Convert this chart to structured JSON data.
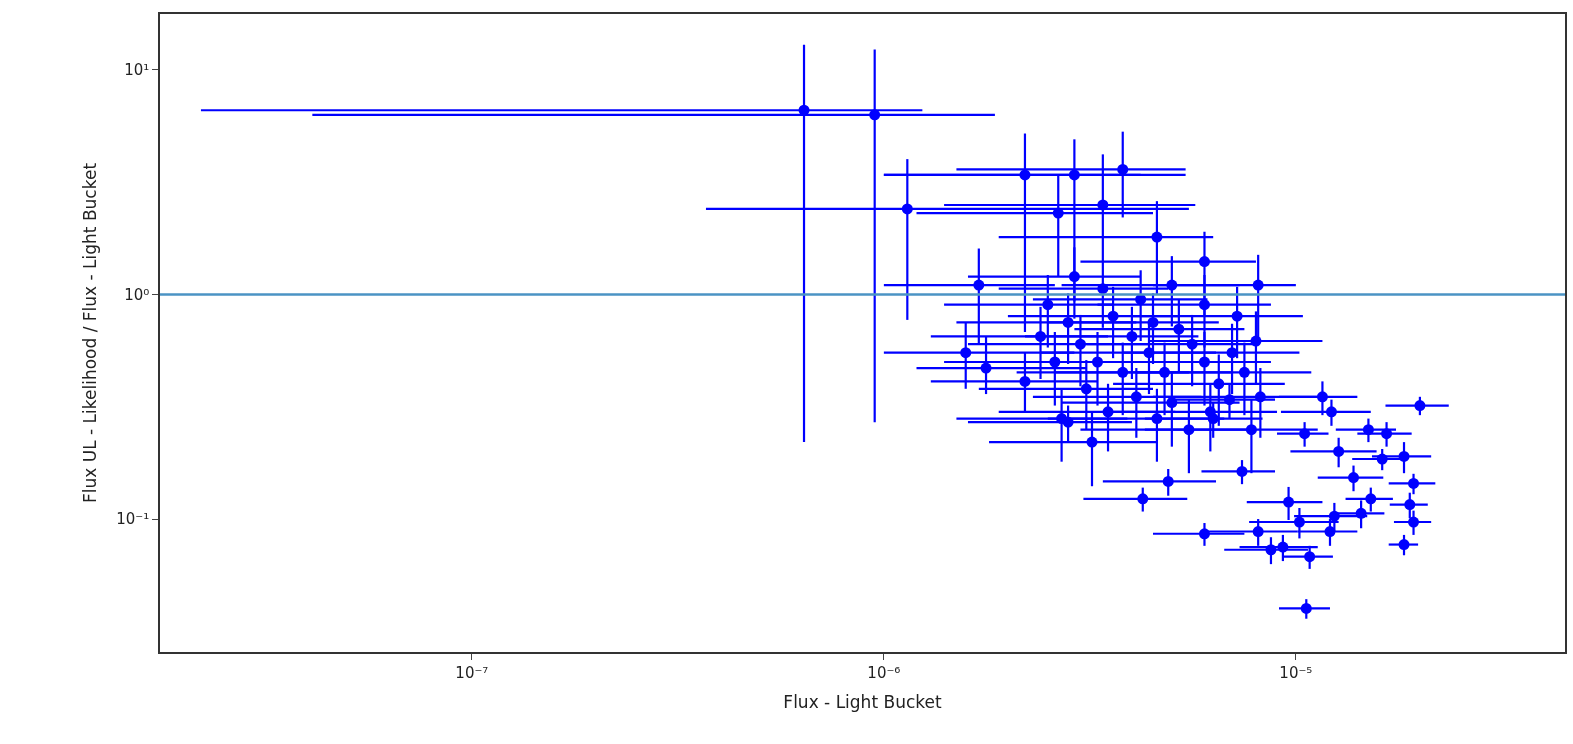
{
  "chart_data": {
    "type": "scatter",
    "xlabel": "Flux - Light Bucket",
    "ylabel": "Flux UL - Likelihood / Flux - Light Bucket",
    "log": "xy",
    "marker": "circle",
    "xlim": [
      1.75e-08,
      4.5e-05
    ],
    "ylim": [
      0.0256,
      17.7
    ],
    "xticks": [
      {
        "value": 1e-07,
        "label": "10⁻⁷"
      },
      {
        "value": 1e-06,
        "label": "10⁻⁶"
      },
      {
        "value": 1e-05,
        "label": "10⁻⁵"
      }
    ],
    "yticks": [
      {
        "value": 0.1,
        "label": "10⁻¹"
      },
      {
        "value": 1,
        "label": "10⁰"
      },
      {
        "value": 10,
        "label": "10¹"
      }
    ],
    "ref_lines": [
      {
        "axis": "y",
        "value": 1,
        "color": "#4b93c4"
      }
    ],
    "series": [
      {
        "color": "#0000ff",
        "x": [
          6.4e-07,
          9.5e-07,
          1.14e-06,
          2.2e-06,
          2.9e-06,
          3.8e-06,
          3.4e-06,
          2.65e-06,
          4.6e-06,
          6e-06,
          8.1e-06,
          1.7e-06,
          1.58e-06,
          1.77e-06,
          2.2e-06,
          1.16e-05,
          2e-05,
          1.22e-05,
          1.05e-05,
          1.5e-05,
          1.66e-05,
          1.27e-05,
          1.83e-05,
          1.38e-05,
          1.62e-05,
          1.93e-05,
          1.52e-05,
          1.44e-05,
          1.89e-05,
          1.93e-05,
          1.83e-05,
          6.9e-06,
          7.4e-06,
          4.9e-06,
          4.25e-06,
          9.6e-06,
          1.02e-05,
          1.24e-05,
          8.1e-06,
          6e-06,
          9.3e-06,
          1.08e-05,
          1.21e-05,
          1.06e-05,
          8.7e-06,
          2.8e-06,
          6.3e-06,
          2.5e-06,
          2.8e-06,
          3e-06,
          3.3e-06,
          3.6e-06,
          4e-06,
          4.4e-06,
          4.8e-06,
          5.2e-06,
          5.6e-06,
          6e-06,
          6.5e-06,
          7e-06,
          7.5e-06,
          8e-06,
          2.6e-06,
          3.1e-06,
          3.5e-06,
          4.1e-06,
          4.6e-06,
          5e-06,
          5.5e-06,
          6.2e-06,
          2.4e-06,
          2.9e-06,
          3.4e-06,
          4.2e-06,
          5e-06,
          6e-06,
          7.2e-06,
          3.8e-06,
          4.5e-06,
          2.7e-06,
          3.2e-06,
          8.2e-06,
          7.8e-06
        ],
        "values": [
          6.6,
          6.3,
          2.4,
          3.4,
          3.4,
          3.6,
          2.5,
          2.3,
          1.8,
          1.4,
          1.1,
          1.1,
          0.55,
          0.47,
          0.41,
          0.35,
          0.32,
          0.3,
          0.24,
          0.25,
          0.24,
          0.2,
          0.19,
          0.153,
          0.185,
          0.144,
          0.123,
          0.106,
          0.116,
          0.097,
          0.077,
          0.34,
          0.163,
          0.147,
          0.123,
          0.119,
          0.097,
          0.103,
          0.088,
          0.086,
          0.075,
          0.068,
          0.088,
          0.04,
          0.073,
          0.27,
          0.28,
          0.9,
          0.75,
          0.6,
          0.5,
          0.8,
          0.65,
          0.55,
          0.45,
          0.7,
          0.6,
          0.5,
          0.4,
          0.55,
          0.45,
          0.62,
          0.5,
          0.38,
          0.3,
          0.35,
          0.28,
          0.33,
          0.25,
          0.3,
          0.65,
          1.2,
          1.06,
          0.95,
          1.1,
          0.9,
          0.8,
          0.45,
          0.75,
          0.28,
          0.22,
          0.35,
          0.25
        ],
        "xerrors": [
          [
            2.2e-08,
            1.24e-06
          ],
          [
            4.1e-08,
            1.86e-06
          ],
          [
            3.7e-07,
            5.5e-06
          ],
          [
            1e-06,
            4.2e-06
          ],
          [
            1e-06,
            5.4e-06
          ],
          [
            1.5e-06,
            5.4e-06
          ],
          [
            1.4e-06,
            5.7e-06
          ],
          [
            1.2e-06,
            4.5e-06
          ],
          [
            1.9e-06,
            6.3e-06
          ],
          [
            3e-06,
            8e-06
          ],
          [
            4.5e-06,
            1e-05
          ],
          [
            1e-06,
            2.6e-06
          ],
          [
            1e-06,
            2.9e-06
          ],
          [
            1.2e-06,
            3.1e-06
          ],
          [
            1.3e-06,
            3.3e-06
          ],
          2.5e-06,
          3.5e-06,
          3e-06,
          1.5e-06,
          2.5e-06,
          2.5e-06,
          3e-06,
          3e-06,
          2.5e-06,
          2.5e-06,
          2.5e-06,
          2e-06,
          2e-06,
          2e-06,
          2e-06,
          1.5e-06,
          2e-06,
          1.5e-06,
          1.5e-06,
          1.2e-06,
          2e-06,
          2.5e-06,
          2.5e-06,
          2e-06,
          1.5e-06,
          2e-06,
          1.5e-06,
          2e-06,
          1.5e-06,
          2e-06,
          1.2e-06,
          2e-06,
          1.1e-06,
          1.3e-06,
          1.4e-06,
          1.5e-06,
          1.6e-06,
          1.8e-06,
          2e-06,
          2.2e-06,
          2.3e-06,
          2.5e-06,
          2.7e-06,
          2.9e-06,
          3.2e-06,
          3.4e-06,
          3.6e-06,
          1.2e-06,
          1.4e-06,
          1.6e-06,
          1.8e-06,
          2.1e-06,
          2.3e-06,
          2.5e-06,
          2.8e-06,
          1.1e-06,
          1.3e-06,
          1.5e-06,
          1.9e-06,
          2.3e-06,
          2.7e-06,
          3.2e-06,
          1.7e-06,
          2e-06,
          1.2e-06,
          1.4e-06,
          3.7e-06,
          3.5e-06
        ],
        "errors": [
          [
            0.22,
            12.9
          ],
          [
            0.27,
            12.3
          ],
          [
            0.77,
            4.0
          ],
          [
            0.68,
            5.2
          ],
          [
            0.93,
            4.9
          ],
          [
            2.2,
            5.3
          ],
          [
            1.4,
            4.2
          ],
          [
            1.2,
            3.4
          ],
          [
            1.0,
            2.6
          ],
          [
            0.8,
            1.9
          ],
          [
            0.6,
            1.5
          ],
          [
            0.6,
            1.6
          ],
          [
            0.38,
            0.75
          ],
          [
            0.36,
            0.65
          ],
          [
            0.3,
            0.55
          ],
          0.06,
          0.03,
          0.04,
          0.03,
          0.03,
          0.03,
          0.03,
          0.03,
          0.02,
          0.02,
          0.015,
          0.015,
          0.015,
          0.015,
          0.012,
          0.008,
          0.06,
          0.02,
          0.02,
          0.015,
          0.02,
          0.015,
          0.015,
          0.012,
          0.01,
          0.01,
          0.008,
          0.012,
          0.004,
          0.01,
          0.05,
          0.05,
          0.32,
          0.26,
          0.21,
          0.18,
          0.28,
          0.23,
          0.19,
          0.16,
          0.25,
          0.21,
          0.18,
          0.14,
          0.19,
          0.16,
          0.22,
          0.18,
          0.13,
          0.1,
          0.12,
          0.1,
          0.12,
          0.09,
          0.1,
          0.23,
          0.42,
          0.35,
          0.33,
          0.38,
          0.32,
          0.28,
          0.16,
          0.26,
          0.1,
          0.08,
          0.12,
          0.09
        ]
      }
    ]
  }
}
